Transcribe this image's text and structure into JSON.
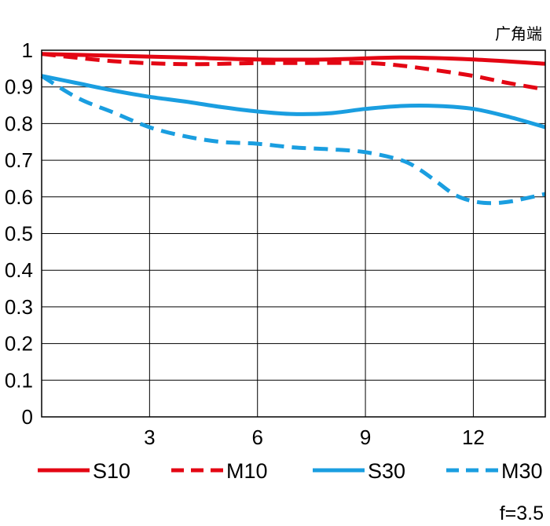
{
  "chart_data": {
    "type": "line",
    "title": "广角端",
    "note": "f=3.5",
    "xlim": [
      0,
      14
    ],
    "ylim": [
      0,
      1
    ],
    "grid": true,
    "x_ticks": [
      3,
      6,
      9,
      12
    ],
    "y_ticks": [
      0,
      0.1,
      0.2,
      0.3,
      0.4,
      0.5,
      0.6,
      0.7,
      0.8,
      0.9,
      1
    ],
    "y_tick_labels": [
      "0",
      "0.1",
      "0.2",
      "0.3",
      "0.4",
      "0.5",
      "0.6",
      "0.7",
      "0.8",
      "0.9",
      "1"
    ],
    "legend_position": "bottom",
    "series": [
      {
        "name": "S10",
        "color": "#e30613",
        "dash": "solid",
        "x": [
          0,
          2,
          4,
          6,
          8,
          10,
          12,
          14
        ],
        "y": [
          0.99,
          0.985,
          0.98,
          0.975,
          0.975,
          0.98,
          0.975,
          0.963
        ]
      },
      {
        "name": "M10",
        "color": "#e30613",
        "dash": "dashed",
        "x": [
          0,
          2,
          4,
          6,
          7,
          9,
          10,
          11,
          12,
          13,
          14
        ],
        "y": [
          0.99,
          0.97,
          0.962,
          0.965,
          0.965,
          0.965,
          0.958,
          0.945,
          0.93,
          0.91,
          0.893
        ]
      },
      {
        "name": "S30",
        "color": "#1a9ee0",
        "dash": "solid",
        "x": [
          0,
          1,
          2,
          3,
          4,
          5,
          6,
          7,
          8,
          9,
          10,
          11,
          12,
          13,
          14
        ],
        "y": [
          0.93,
          0.91,
          0.89,
          0.873,
          0.86,
          0.845,
          0.833,
          0.826,
          0.828,
          0.84,
          0.848,
          0.848,
          0.84,
          0.818,
          0.79
        ]
      },
      {
        "name": "M30",
        "color": "#1a9ee0",
        "dash": "dashed",
        "x": [
          0,
          1,
          2,
          3,
          4,
          5,
          6,
          7,
          8,
          9,
          10,
          10.5,
          11,
          11.5,
          12,
          12.5,
          13,
          13.5,
          14
        ],
        "y": [
          0.93,
          0.87,
          0.83,
          0.79,
          0.765,
          0.75,
          0.745,
          0.735,
          0.73,
          0.722,
          0.7,
          0.675,
          0.64,
          0.605,
          0.588,
          0.583,
          0.587,
          0.597,
          0.608
        ]
      }
    ]
  }
}
